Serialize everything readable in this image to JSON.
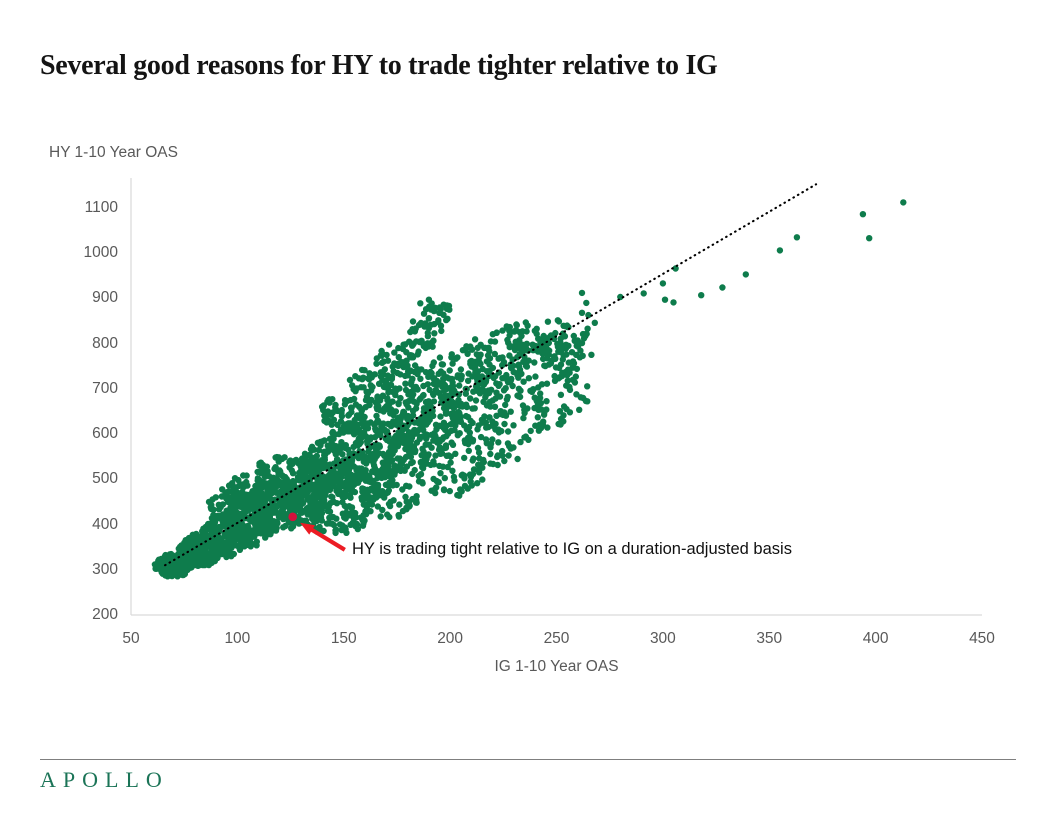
{
  "page": {
    "title": "Several good reasons for HY to trade tighter relative to IG"
  },
  "footer": {
    "brand": "APOLLO"
  },
  "chart_data": {
    "type": "scatter",
    "title": "Several good reasons for HY to trade tighter relative to IG",
    "xlabel": "IG 1-10 Year OAS",
    "ylabel": "HY 1-10 Year OAS",
    "xlim": [
      50,
      450
    ],
    "ylim": [
      200,
      1166
    ],
    "x_ticks": [
      50,
      100,
      150,
      200,
      250,
      300,
      350,
      400,
      450
    ],
    "y_ticks": [
      200,
      300,
      400,
      500,
      600,
      700,
      800,
      900,
      1000,
      1100
    ],
    "grid": false,
    "legend_position": "none",
    "colors": {
      "points": "#0E7C4C",
      "trendline": "#000000",
      "highlight": "#D4113C",
      "arrow": "#EC1C24",
      "axis": "#D9D9D9",
      "tick_text": "#595959"
    },
    "trendline": {
      "style": "dotted",
      "from_xy": [
        66,
        310
      ],
      "to_xy": [
        372,
        1152
      ]
    },
    "highlight_point": {
      "x": 126,
      "y": 417
    },
    "annotation": {
      "text": "HY is trading tight relative to IG on a duration-adjusted basis",
      "arrow_tail_xy": [
        150.5,
        344
      ],
      "arrow_head_xy": [
        129.5,
        404
      ],
      "text_xy": [
        152,
        342
      ]
    },
    "series": [
      {
        "name": "observations",
        "marker_radius_px": 3.2,
        "outlier_points": [
          [
            186,
            889
          ],
          [
            190,
            897
          ],
          [
            193,
            879
          ],
          [
            197,
            886
          ],
          [
            262,
            912
          ],
          [
            264,
            890
          ],
          [
            262,
            868
          ],
          [
            265,
            863
          ],
          [
            262,
            801
          ],
          [
            268,
            846
          ],
          [
            280,
            903
          ],
          [
            291,
            911
          ],
          [
            300,
            933
          ],
          [
            301,
            897
          ],
          [
            305,
            891
          ],
          [
            306,
            966
          ],
          [
            318,
            907
          ],
          [
            328,
            924
          ],
          [
            339,
            953
          ],
          [
            355,
            1006
          ],
          [
            363,
            1035
          ],
          [
            397,
            1033
          ],
          [
            394,
            1086
          ],
          [
            413,
            1112
          ]
        ],
        "cloud_clusters_cx_cy_rx_ry_n": [
          [
            70,
            310,
            9,
            26,
            150
          ],
          [
            82,
            343,
            10,
            38,
            170
          ],
          [
            94,
            376,
            11,
            48,
            180
          ],
          [
            106,
            409,
            12,
            58,
            180
          ],
          [
            118,
            442,
            12,
            66,
            175
          ],
          [
            130,
            475,
            13,
            74,
            170
          ],
          [
            142,
            508,
            13,
            80,
            165
          ],
          [
            154,
            541,
            14,
            88,
            155
          ],
          [
            166,
            574,
            14,
            95,
            145
          ],
          [
            178,
            607,
            14,
            102,
            135
          ],
          [
            190,
            640,
            15,
            108,
            120
          ],
          [
            202,
            673,
            15,
            112,
            105
          ],
          [
            214,
            706,
            15,
            110,
            90
          ],
          [
            226,
            739,
            15,
            100,
            80
          ],
          [
            238,
            772,
            15,
            88,
            65
          ],
          [
            250,
            790,
            12,
            65,
            45
          ],
          [
            259,
            800,
            9,
            55,
            28
          ],
          [
            150,
            645,
            11,
            42,
            60
          ],
          [
            163,
            702,
            11,
            44,
            60
          ],
          [
            176,
            758,
            11,
            44,
            55
          ],
          [
            188,
            820,
            9,
            38,
            40
          ],
          [
            194,
            868,
            7,
            26,
            20
          ],
          [
            95,
            445,
            10,
            32,
            35
          ],
          [
            100,
            470,
            8,
            22,
            20
          ],
          [
            108,
            480,
            12,
            35,
            45
          ],
          [
            120,
            515,
            12,
            35,
            45
          ],
          [
            145,
            415,
            16,
            38,
            80
          ],
          [
            172,
            455,
            16,
            40,
            70
          ],
          [
            200,
            510,
            16,
            50,
            60
          ],
          [
            222,
            580,
            15,
            50,
            50
          ],
          [
            245,
            640,
            12,
            45,
            35
          ],
          [
            258,
            700,
            8,
            50,
            25
          ]
        ],
        "random_seed": 7
      }
    ]
  }
}
